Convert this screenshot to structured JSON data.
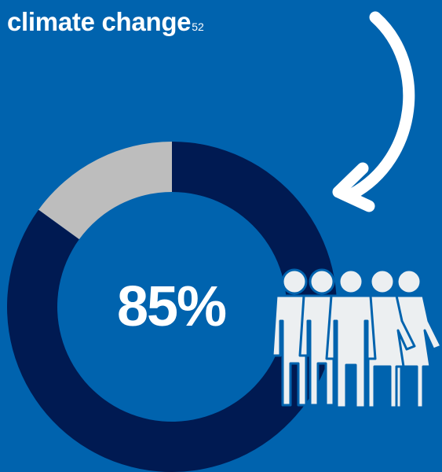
{
  "heading": {
    "text": "climate change",
    "footnote": "52"
  },
  "chart_data": {
    "type": "pie",
    "variant": "donut",
    "center_label": "85%",
    "slices": [
      {
        "value": 85,
        "color": "#001A52"
      },
      {
        "value": 15,
        "color": "#BDBDBD"
      }
    ]
  },
  "icons": {
    "arrow": "curved-arrow-icon",
    "people": "people-group-icon"
  },
  "colors": {
    "background": "#0063AE",
    "ring_main": "#001A52",
    "ring_rest": "#BDBDBD",
    "figures": "#ECEFF1"
  }
}
